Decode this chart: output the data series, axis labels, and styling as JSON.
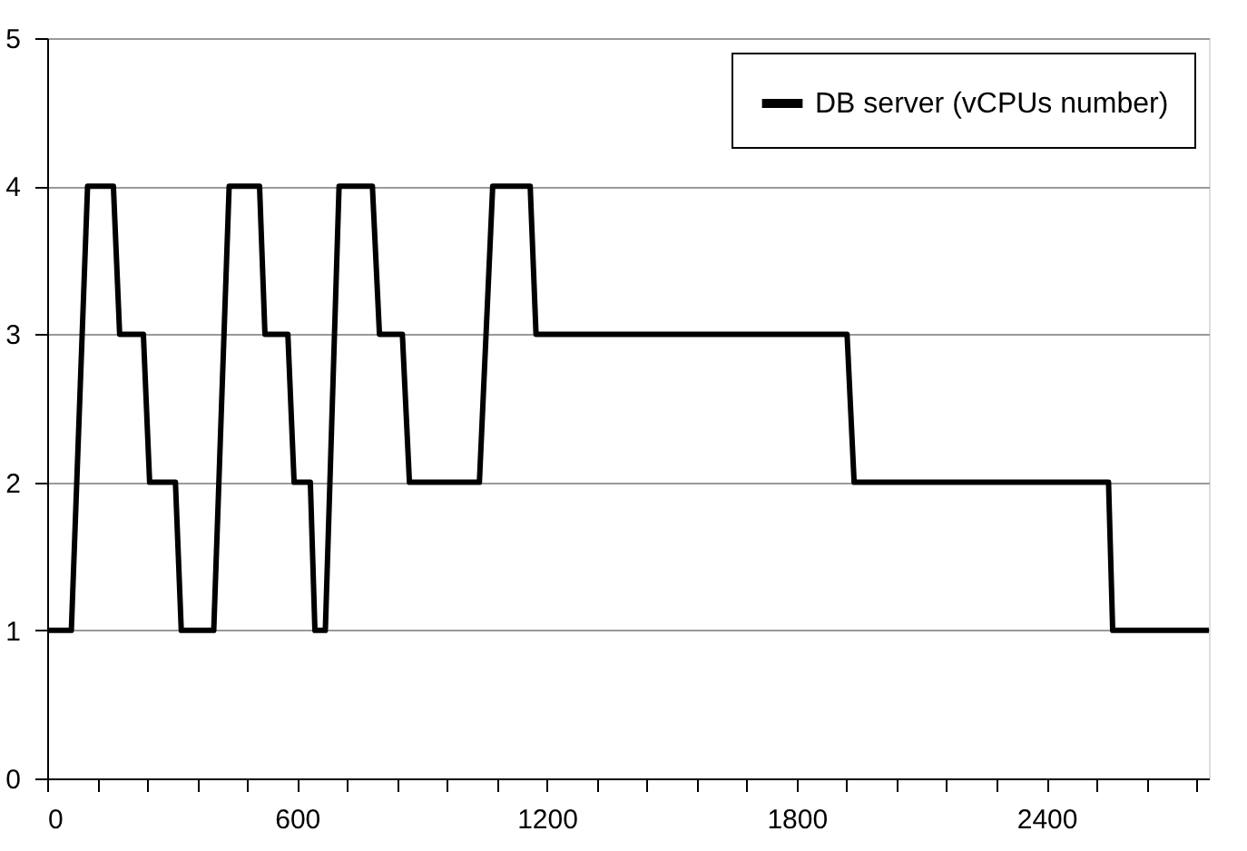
{
  "chart_data": {
    "type": "line",
    "x": [
      0,
      58,
      97,
      159,
      174,
      231,
      246,
      308,
      322,
      400,
      437,
      510,
      523,
      578,
      593,
      632,
      643,
      668,
      701,
      781,
      798,
      853,
      870,
      1038,
      1070,
      1160,
      1174,
      1921,
      1938,
      2549,
      2559,
      2790
    ],
    "series": [
      {
        "name": "DB server (vCPUs number)",
        "color": "#000000",
        "values": [
          1,
          1,
          4,
          4,
          3,
          3,
          2,
          2,
          1,
          1,
          4,
          4,
          3,
          3,
          2,
          2,
          1,
          1,
          4,
          4,
          3,
          3,
          2,
          2,
          4,
          4,
          3,
          3,
          2,
          2,
          1,
          1
        ]
      }
    ],
    "xlim": [
      0,
      2790
    ],
    "xticks": [
      0,
      {
        "value": 120,
        "label": null
      },
      {
        "value": 240,
        "label": null
      },
      {
        "value": 360,
        "label": null
      },
      {
        "value": 480,
        "label": null
      },
      600,
      {
        "value": 720,
        "label": null
      },
      {
        "value": 840,
        "label": null
      },
      {
        "value": 960,
        "label": null
      },
      {
        "value": 1080,
        "label": null
      },
      1200,
      {
        "value": 1320,
        "label": null
      },
      {
        "value": 1440,
        "label": null
      },
      {
        "value": 1560,
        "label": null
      },
      {
        "value": 1680,
        "label": null
      },
      1800,
      {
        "value": 1920,
        "label": null
      },
      {
        "value": 2040,
        "label": null
      },
      {
        "value": 2160,
        "label": null
      },
      {
        "value": 2280,
        "label": null
      },
      2400,
      {
        "value": 2520,
        "label": null
      },
      {
        "value": 2640,
        "label": null
      },
      {
        "value": 2760,
        "label": null
      }
    ],
    "ylim": [
      0,
      5
    ],
    "yticks": [
      0,
      1,
      2,
      3,
      4,
      5
    ],
    "grid": "y",
    "legend": "top right",
    "marker": "none",
    "line_style": "solid"
  }
}
